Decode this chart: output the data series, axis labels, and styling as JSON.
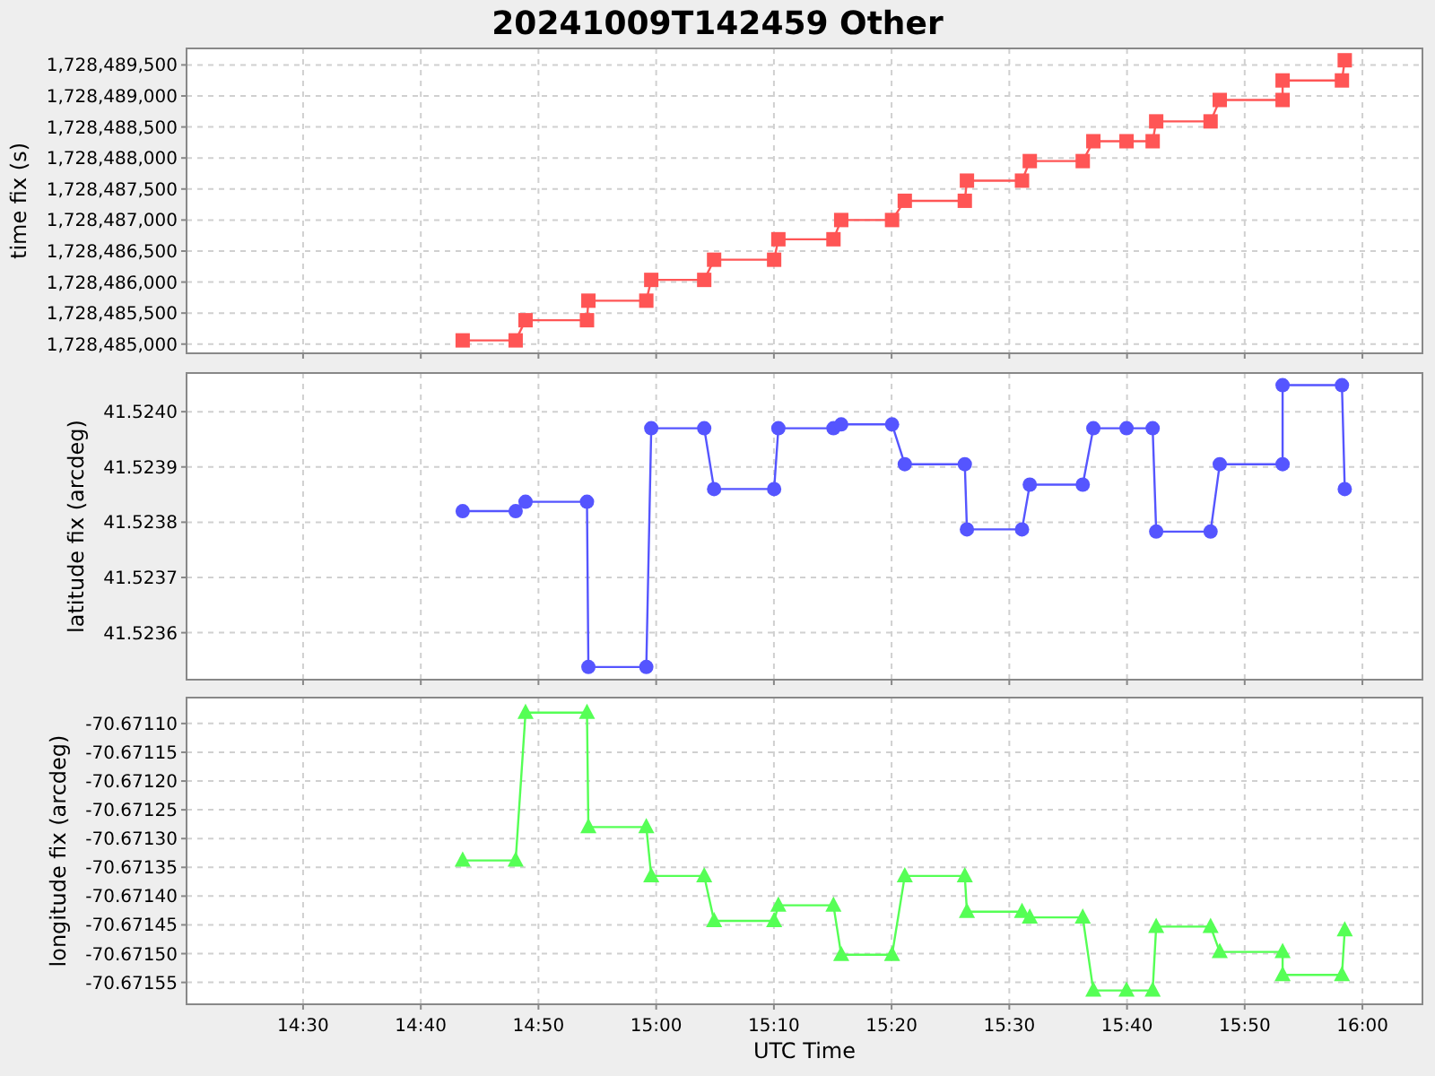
{
  "chart_data": [
    {
      "type": "line",
      "title": "20241009T142459 Other",
      "ylabel": "time fix (s)",
      "marker": "square",
      "grid": true,
      "tick_labels": "y",
      "xlim": [
        14.335,
        16.085
      ],
      "xticks": [
        {
          "value": 14.5,
          "label": null
        },
        {
          "value": 14.6667,
          "label": null
        },
        {
          "value": 14.8333,
          "label": null
        },
        {
          "value": 15,
          "label": null
        },
        {
          "value": 15.1667,
          "label": null
        },
        {
          "value": 15.3333,
          "label": null
        },
        {
          "value": 15.5,
          "label": null
        },
        {
          "value": 15.6667,
          "label": null
        },
        {
          "value": 15.8333,
          "label": null
        },
        {
          "value": 16,
          "label": null
        }
      ],
      "ylim": [
        1728484852,
        1728489766
      ],
      "yticks": [
        {
          "value": 1728485000,
          "label": "1,728,485,000"
        },
        {
          "value": 1728485500,
          "label": "1,728,485,500"
        },
        {
          "value": 1728486000,
          "label": "1,728,486,000"
        },
        {
          "value": 1728486500,
          "label": "1,728,486,500"
        },
        {
          "value": 1728487000,
          "label": "1,728,487,000"
        },
        {
          "value": 1728487500,
          "label": "1,728,487,500"
        },
        {
          "value": 1728488000,
          "label": "1,728,488,000"
        },
        {
          "value": 1728488500,
          "label": "1,728,488,500"
        },
        {
          "value": 1728489000,
          "label": "1,728,489,000"
        },
        {
          "value": 1728489500,
          "label": "1,728,489,500"
        }
      ],
      "series": [
        {
          "color": "#ff5555",
          "x": [
            14.726,
            14.801,
            14.815,
            14.902,
            14.904,
            14.986,
            14.993,
            15.068,
            15.082,
            15.167,
            15.173,
            15.251,
            15.262,
            15.334,
            15.352,
            15.437,
            15.44,
            15.518,
            15.529,
            15.604,
            15.619,
            15.666,
            15.703,
            15.708,
            15.785,
            15.798,
            15.887,
            15.887,
            15.971,
            15.975
          ],
          "values": [
            1728485060,
            1728485060,
            1728485385,
            1728485385,
            1728485700,
            1728485700,
            1728486035,
            1728486035,
            1728486360,
            1728486360,
            1728486690,
            1728486690,
            1728487000,
            1728487000,
            1728487310,
            1728487310,
            1728487635,
            1728487635,
            1728487950,
            1728487950,
            1728488270,
            1728488270,
            1728488270,
            1728488590,
            1728488590,
            1728488935,
            1728488935,
            1728489250,
            1728489250,
            1728489575
          ]
        }
      ]
    },
    {
      "type": "line",
      "ylabel": "latitude fix (arcdeg)",
      "marker": "circle",
      "grid": true,
      "tick_labels": "y",
      "xlim": [
        14.335,
        16.085
      ],
      "xticks": [
        {
          "value": 14.5,
          "label": null
        },
        {
          "value": 14.6667,
          "label": null
        },
        {
          "value": 14.8333,
          "label": null
        },
        {
          "value": 15,
          "label": null
        },
        {
          "value": 15.1667,
          "label": null
        },
        {
          "value": 15.3333,
          "label": null
        },
        {
          "value": 15.5,
          "label": null
        },
        {
          "value": 15.6667,
          "label": null
        },
        {
          "value": 15.8333,
          "label": null
        },
        {
          "value": 16,
          "label": null
        }
      ],
      "ylim": [
        41.523515,
        41.52407
      ],
      "yticks": [
        {
          "value": 41.5236,
          "label": "41.5236"
        },
        {
          "value": 41.5237,
          "label": "41.5237"
        },
        {
          "value": 41.5238,
          "label": "41.5238"
        },
        {
          "value": 41.5239,
          "label": "41.5239"
        },
        {
          "value": 41.524,
          "label": "41.5240"
        }
      ],
      "series": [
        {
          "color": "#5555ff",
          "x": [
            14.726,
            14.801,
            14.815,
            14.902,
            14.904,
            14.986,
            14.993,
            15.068,
            15.082,
            15.167,
            15.173,
            15.251,
            15.262,
            15.334,
            15.352,
            15.437,
            15.44,
            15.518,
            15.529,
            15.604,
            15.619,
            15.666,
            15.703,
            15.708,
            15.785,
            15.798,
            15.887,
            15.887,
            15.971,
            15.975
          ],
          "values": [
            41.52382,
            41.52382,
            41.523837,
            41.523837,
            41.523538,
            41.523538,
            41.52397,
            41.52397,
            41.52386,
            41.52386,
            41.52397,
            41.52397,
            41.523977,
            41.523977,
            41.523905,
            41.523905,
            41.523787,
            41.523787,
            41.523868,
            41.523868,
            41.52397,
            41.52397,
            41.52397,
            41.523783,
            41.523783,
            41.523905,
            41.523905,
            41.524048,
            41.524048,
            41.52386
          ]
        }
      ]
    },
    {
      "type": "line",
      "ylabel": "longitude fix (arcdeg)",
      "xlabel": "UTC Time",
      "marker": "triangle",
      "grid": true,
      "xlim": [
        14.335,
        16.085
      ],
      "xticks": [
        {
          "value": 14.5,
          "label": "14:30"
        },
        {
          "value": 14.6667,
          "label": "14:40"
        },
        {
          "value": 14.8333,
          "label": "14:50"
        },
        {
          "value": 15,
          "label": "15:00"
        },
        {
          "value": 15.1667,
          "label": "15:10"
        },
        {
          "value": 15.3333,
          "label": "15:20"
        },
        {
          "value": 15.5,
          "label": "15:30"
        },
        {
          "value": 15.6667,
          "label": "15:40"
        },
        {
          "value": 15.8333,
          "label": "15:50"
        },
        {
          "value": 16,
          "label": "16:00"
        }
      ],
      "ylim": [
        -70.671588,
        -70.671055
      ],
      "yticks": [
        {
          "value": -70.67155,
          "label": "-70.67155"
        },
        {
          "value": -70.6715,
          "label": "-70.67150"
        },
        {
          "value": -70.67145,
          "label": "-70.67145"
        },
        {
          "value": -70.6714,
          "label": "-70.67140"
        },
        {
          "value": -70.67135,
          "label": "-70.67135"
        },
        {
          "value": -70.6713,
          "label": "-70.67130"
        },
        {
          "value": -70.67125,
          "label": "-70.67125"
        },
        {
          "value": -70.6712,
          "label": "-70.67120"
        },
        {
          "value": -70.67115,
          "label": "-70.67115"
        },
        {
          "value": -70.6711,
          "label": "-70.67110"
        }
      ],
      "series": [
        {
          "color": "#55ff55",
          "x": [
            14.726,
            14.801,
            14.815,
            14.902,
            14.904,
            14.986,
            14.993,
            15.068,
            15.082,
            15.167,
            15.173,
            15.251,
            15.262,
            15.334,
            15.352,
            15.437,
            15.44,
            15.518,
            15.529,
            15.604,
            15.619,
            15.666,
            15.703,
            15.708,
            15.785,
            15.798,
            15.887,
            15.887,
            15.971,
            15.975
          ],
          "values": [
            -70.671338,
            -70.671338,
            -70.671081,
            -70.671081,
            -70.67128,
            -70.67128,
            -70.671365,
            -70.671365,
            -70.671443,
            -70.671443,
            -70.671416,
            -70.671416,
            -70.671502,
            -70.671502,
            -70.671365,
            -70.671365,
            -70.671427,
            -70.671427,
            -70.671437,
            -70.671437,
            -70.671564,
            -70.671564,
            -70.671564,
            -70.671453,
            -70.671453,
            -70.671497,
            -70.671497,
            -70.671537,
            -70.671537,
            -70.671459
          ]
        }
      ]
    }
  ]
}
